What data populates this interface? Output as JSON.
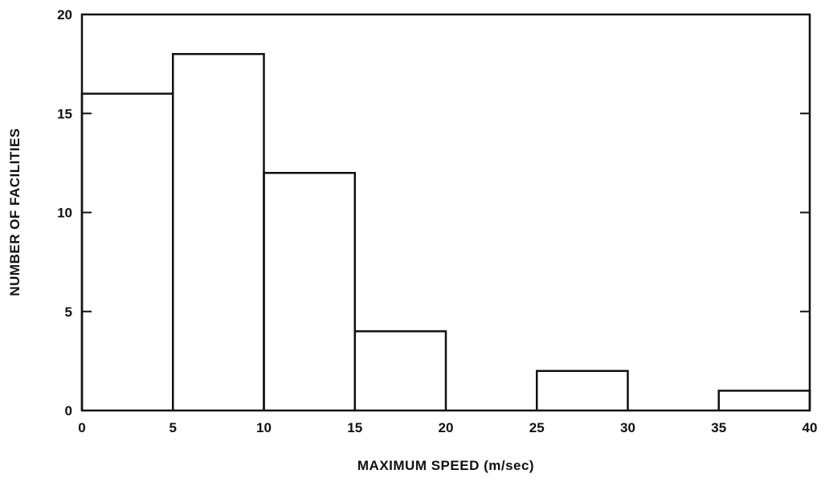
{
  "chart_data": {
    "type": "bar",
    "subtype": "histogram",
    "title": "",
    "xlabel": "MAXIMUM SPEED (m/sec)",
    "ylabel": "NUMBER OF FACILITIES",
    "xlim": [
      0,
      40
    ],
    "ylim": [
      0,
      20
    ],
    "x_ticks": [
      0,
      5,
      10,
      15,
      20,
      25,
      30,
      35,
      40
    ],
    "y_ticks": [
      0,
      5,
      10,
      15,
      20
    ],
    "bins": [
      {
        "x0": 0,
        "x1": 5,
        "value": 16
      },
      {
        "x0": 5,
        "x1": 10,
        "value": 18
      },
      {
        "x0": 10,
        "x1": 15,
        "value": 12
      },
      {
        "x0": 15,
        "x1": 20,
        "value": 4
      },
      {
        "x0": 20,
        "x1": 25,
        "value": 0
      },
      {
        "x0": 25,
        "x1": 30,
        "value": 2
      },
      {
        "x0": 30,
        "x1": 35,
        "value": 0
      },
      {
        "x0": 35,
        "x1": 40,
        "value": 1
      }
    ],
    "grid": false,
    "legend": "none",
    "colors": {
      "line": "#111111",
      "background": "#ffffff"
    }
  }
}
